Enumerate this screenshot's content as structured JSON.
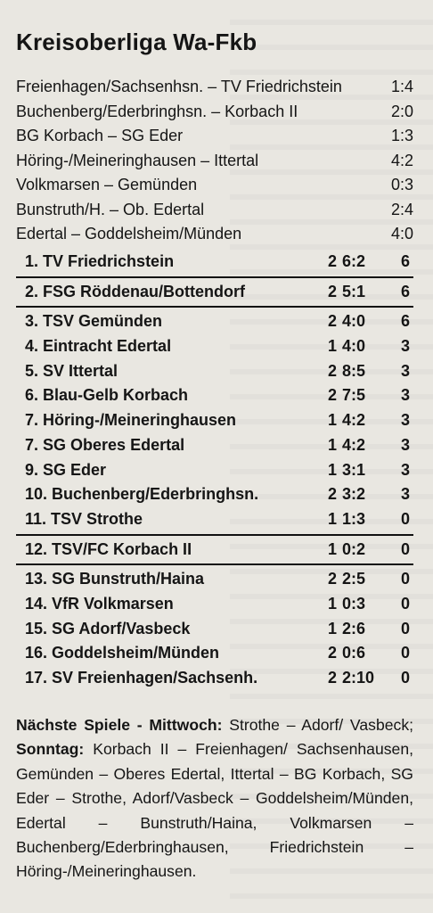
{
  "title": "Kreisoberliga Wa-Fkb",
  "results": [
    {
      "match": "Freienhagen/Sachsenhsn. – TV Friedrichstein",
      "score": "1:4"
    },
    {
      "match": "Buchenberg/Ederbringhsn. – Korbach II",
      "score": "2:0"
    },
    {
      "match": "BG Korbach – SG Eder",
      "score": "1:3"
    },
    {
      "match": "Höring-/Meineringhausen – Ittertal",
      "score": "4:2"
    },
    {
      "match": "Volkmarsen – Gemünden",
      "score": "0:3"
    },
    {
      "match": "Bunstruth/H. – Ob. Edertal",
      "score": "2:4"
    },
    {
      "match": "Edertal – Goddelsheim/Münden",
      "score": "4:0"
    }
  ],
  "standings": [
    {
      "rank": "1.",
      "team": "TV Friedrichstein",
      "games": "2",
      "goals": "6:2",
      "points": "6"
    },
    {
      "rank": "2.",
      "team": "FSG Röddenau/Bottendorf",
      "games": "2",
      "goals": "5:1",
      "points": "6"
    },
    {
      "rank": "3.",
      "team": "TSV Gemünden",
      "games": "2",
      "goals": "4:0",
      "points": "6"
    },
    {
      "rank": "4.",
      "team": "Eintracht Edertal",
      "games": "1",
      "goals": "4:0",
      "points": "3"
    },
    {
      "rank": "5.",
      "team": "SV Ittertal",
      "games": "2",
      "goals": "8:5",
      "points": "3"
    },
    {
      "rank": "6.",
      "team": "Blau-Gelb Korbach",
      "games": "2",
      "goals": "7:5",
      "points": "3"
    },
    {
      "rank": "7.",
      "team": "Höring-/Meineringhausen",
      "games": "1",
      "goals": "4:2",
      "points": "3"
    },
    {
      "rank": "7.",
      "team": "SG Oberes Edertal",
      "games": "1",
      "goals": "4:2",
      "points": "3"
    },
    {
      "rank": "9.",
      "team": "SG Eder",
      "games": "1",
      "goals": "3:1",
      "points": "3"
    },
    {
      "rank": "10.",
      "team": "Buchenberg/Ederbringhsn.",
      "games": "2",
      "goals": "3:2",
      "points": "3"
    },
    {
      "rank": "11.",
      "team": "TSV Strothe",
      "games": "1",
      "goals": "1:3",
      "points": "0"
    },
    {
      "rank": "12.",
      "team": "TSV/FC Korbach II",
      "games": "1",
      "goals": "0:2",
      "points": "0"
    },
    {
      "rank": "13.",
      "team": "SG Bunstruth/Haina",
      "games": "2",
      "goals": "2:5",
      "points": "0"
    },
    {
      "rank": "14.",
      "team": "VfR Volkmarsen",
      "games": "1",
      "goals": "0:3",
      "points": "0"
    },
    {
      "rank": "15.",
      "team": "SG Adorf/Vasbeck",
      "games": "1",
      "goals": "2:6",
      "points": "0"
    },
    {
      "rank": "16.",
      "team": "Goddelsheim/Münden",
      "games": "2",
      "goals": "0:6",
      "points": "0"
    },
    {
      "rank": "17.",
      "team": "SV Freienhagen/Sachsenh.",
      "games": "2",
      "goals": "2:10",
      "points": "0"
    }
  ],
  "next_games": {
    "label_1": "Nächste Spiele - Mittwoch:",
    "text_1": " Strothe – Adorf/ Vasbeck; ",
    "label_2": "Sonntag:",
    "text_2": " Korbach II – Freienhagen/ Sachsenhausen, Gemünden – Oberes Edertal, Ittertal – BG Korbach, SG Eder – Strothe, Adorf/Vasbeck – Goddelsheim/Münden, Edertal – Bunstruth/Haina, Volkmarsen – Buchenberg/Ederbringhausen, Friedrichstein – Höring-/Meineringhausen."
  }
}
